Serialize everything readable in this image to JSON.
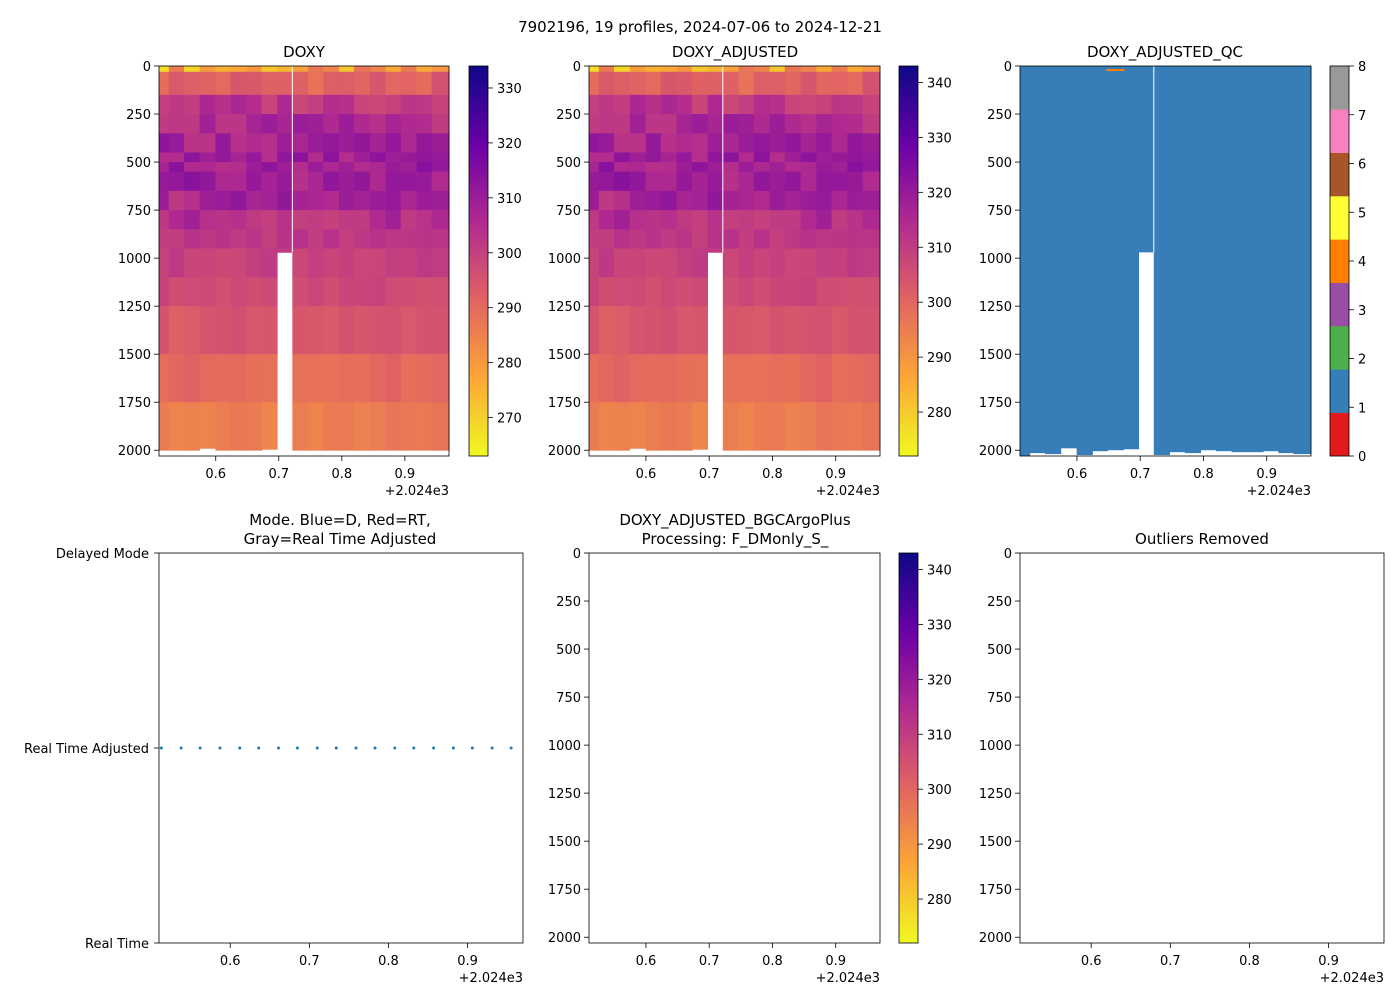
{
  "figure": {
    "suptitle": "7902196, 19 profiles, 2024-07-06 to 2024-12-21",
    "x_offset_label": "+2.024e3",
    "x_ticks": [
      "0.6",
      "0.7",
      "0.8",
      "0.9"
    ]
  },
  "panels": {
    "doxy": {
      "title": "DOXY",
      "y_ticks": [
        "0",
        "250",
        "500",
        "750",
        "1000",
        "1250",
        "1500",
        "1750",
        "2000"
      ],
      "colorbar_ticks": [
        "330",
        "320",
        "310",
        "300",
        "290",
        "280",
        "270"
      ]
    },
    "doxy_adjusted": {
      "title": "DOXY_ADJUSTED",
      "y_ticks": [
        "0",
        "250",
        "500",
        "750",
        "1000",
        "1250",
        "1500",
        "1750",
        "2000"
      ],
      "colorbar_ticks": [
        "340",
        "330",
        "320",
        "310",
        "300",
        "290",
        "280"
      ]
    },
    "doxy_adjusted_qc": {
      "title": "DOXY_ADJUSTED_QC",
      "y_ticks": [
        "0",
        "250",
        "500",
        "750",
        "1000",
        "1250",
        "1500",
        "1750",
        "2000"
      ],
      "colorbar_ticks": [
        "8",
        "7",
        "6",
        "5",
        "4",
        "3",
        "2",
        "1",
        "0"
      ]
    },
    "mode": {
      "title_line1": "Mode. Blue=D, Red=RT,",
      "title_line2": "Gray=Real Time Adjusted",
      "y_labels": [
        "Delayed Mode",
        "Real Time Adjusted",
        "Real Time"
      ]
    },
    "bgc": {
      "title_line1": "DOXY_ADJUSTED_BGCArgoPlus",
      "title_line2": "Processing: F_DMonly_S_",
      "y_ticks": [
        "0",
        "250",
        "500",
        "750",
        "1000",
        "1250",
        "1500",
        "1750",
        "2000"
      ],
      "colorbar_ticks": [
        "340",
        "330",
        "320",
        "310",
        "300",
        "290",
        "280"
      ]
    },
    "outliers": {
      "title": "Outliers Removed",
      "y_ticks": [
        "0",
        "250",
        "500",
        "750",
        "1000",
        "1250",
        "1500",
        "1750",
        "2000"
      ]
    }
  },
  "colors": {
    "qc_scale": [
      "#e41a1c",
      "#377eb8",
      "#4daf4a",
      "#984ea3",
      "#ff7f00",
      "#ffff33",
      "#a65628",
      "#f781bf",
      "#999999"
    ],
    "plasma": [
      "#0d0887",
      "#6a00a8",
      "#b12a90",
      "#e16462",
      "#fca636",
      "#f0f921"
    ],
    "mode_points": "#1f77b4",
    "qc_fill": "#377eb8"
  },
  "chart_data": [
    {
      "type": "heatmap",
      "title": "DOXY",
      "xlabel": "",
      "ylabel": "",
      "xlim": [
        2024.51,
        2024.97
      ],
      "ylim": [
        2030,
        0
      ],
      "clim": [
        263,
        334
      ],
      "profiles_x": [
        2024.513,
        2024.538,
        2024.562,
        2024.587,
        2024.612,
        2024.636,
        2024.661,
        2024.685,
        2024.71,
        2024.734,
        2024.759,
        2024.783,
        2024.808,
        2024.832,
        2024.857,
        2024.882,
        2024.906,
        2024.931,
        2024.955
      ],
      "profile_max_depth": [
        2030,
        2015,
        2020,
        1990,
        2025,
        2005,
        2000,
        1995,
        970,
        2025,
        2010,
        2015,
        2000,
        2005,
        2010,
        2010,
        2005,
        2015,
        2020
      ],
      "depths": [
        0,
        30,
        80,
        150,
        250,
        350,
        450,
        500,
        550,
        650,
        750,
        850,
        950,
        1100,
        1250,
        1500,
        1750,
        2000
      ],
      "colorbar_ticks": [
        330,
        320,
        310,
        300,
        290,
        280,
        270
      ]
    },
    {
      "type": "heatmap",
      "title": "DOXY_ADJUSTED",
      "xlim": [
        2024.51,
        2024.97
      ],
      "ylim": [
        2030,
        0
      ],
      "clim": [
        272,
        343
      ],
      "colorbar_ticks": [
        340,
        330,
        320,
        310,
        300,
        290,
        280
      ]
    },
    {
      "type": "heatmap",
      "title": "DOXY_ADJUSTED_QC",
      "xlim": [
        2024.51,
        2024.97
      ],
      "ylim": [
        2030,
        0
      ],
      "clim": [
        0,
        8
      ],
      "dominant_flag": 1,
      "colorbar_ticks": [
        8,
        7,
        6,
        5,
        4,
        3,
        2,
        1,
        0
      ]
    },
    {
      "type": "scatter",
      "title": "Mode. Blue=D, Red=RT, Gray=Real Time Adjusted",
      "xlim": [
        2024.51,
        2024.97
      ],
      "categories": [
        "Real Time",
        "Real Time Adjusted",
        "Delayed Mode"
      ],
      "x": [
        2024.513,
        2024.538,
        2024.562,
        2024.587,
        2024.612,
        2024.636,
        2024.661,
        2024.685,
        2024.71,
        2024.734,
        2024.759,
        2024.783,
        2024.808,
        2024.832,
        2024.857,
        2024.882,
        2024.906,
        2024.931,
        2024.955
      ],
      "y_category": "Real Time Adjusted"
    },
    {
      "type": "heatmap",
      "title": "DOXY_ADJUSTED_BGCArgoPlus Processing: F_DMonly_S_",
      "xlim": [
        2024.51,
        2024.97
      ],
      "ylim": [
        2030,
        0
      ],
      "clim": [
        272,
        343
      ],
      "values": [],
      "colorbar_ticks": [
        340,
        330,
        320,
        310,
        300,
        290,
        280
      ]
    },
    {
      "type": "scatter",
      "title": "Outliers Removed",
      "xlim": [
        2024.51,
        2024.97
      ],
      "ylim": [
        2030,
        0
      ],
      "values": []
    }
  ]
}
